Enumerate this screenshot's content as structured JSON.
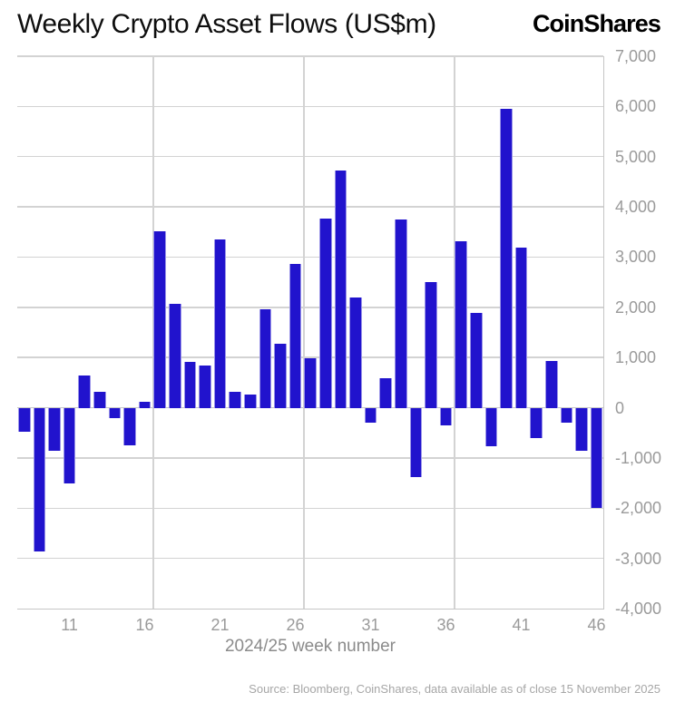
{
  "header": {
    "title": "Weekly Crypto Asset Flows (US$m)",
    "logo": "CoinShares"
  },
  "chart_data": {
    "type": "bar",
    "title": "Weekly Crypto Asset Flows (US$m)",
    "xlabel": "2024/25 week number",
    "ylabel": "",
    "x": [
      8,
      9,
      10,
      11,
      12,
      13,
      14,
      15,
      16,
      17,
      18,
      19,
      20,
      21,
      22,
      23,
      24,
      25,
      26,
      27,
      28,
      29,
      30,
      31,
      32,
      33,
      34,
      35,
      36,
      37,
      38,
      39,
      40,
      41,
      42,
      43,
      44,
      45,
      46
    ],
    "values": [
      -470,
      -2870,
      -860,
      -1510,
      640,
      310,
      -200,
      -740,
      110,
      3510,
      2070,
      910,
      840,
      3350,
      320,
      270,
      1960,
      1280,
      2870,
      990,
      3770,
      4720,
      2190,
      -300,
      580,
      3750,
      -1390,
      2500,
      -350,
      3310,
      1890,
      -770,
      5950,
      3180,
      -610,
      940,
      -290,
      -850,
      -2000
    ],
    "xticks": [
      11,
      16,
      21,
      26,
      31,
      36,
      41,
      46
    ],
    "ylim": [
      -4000,
      7000
    ],
    "ytick_step": 1000,
    "x_gridlines_at_weeks": [
      16.57,
      26.57,
      36.57
    ],
    "grid": true,
    "legend_position": "none",
    "bar_color": "#2113cd",
    "grid_color": "#d3d3d3",
    "axis_line_color": "#c6c6c6",
    "tick_label_color": "#9a9a9a"
  },
  "footer": {
    "source": "Source: Bloomberg, CoinShares, data available as of close 15 November 2025"
  }
}
